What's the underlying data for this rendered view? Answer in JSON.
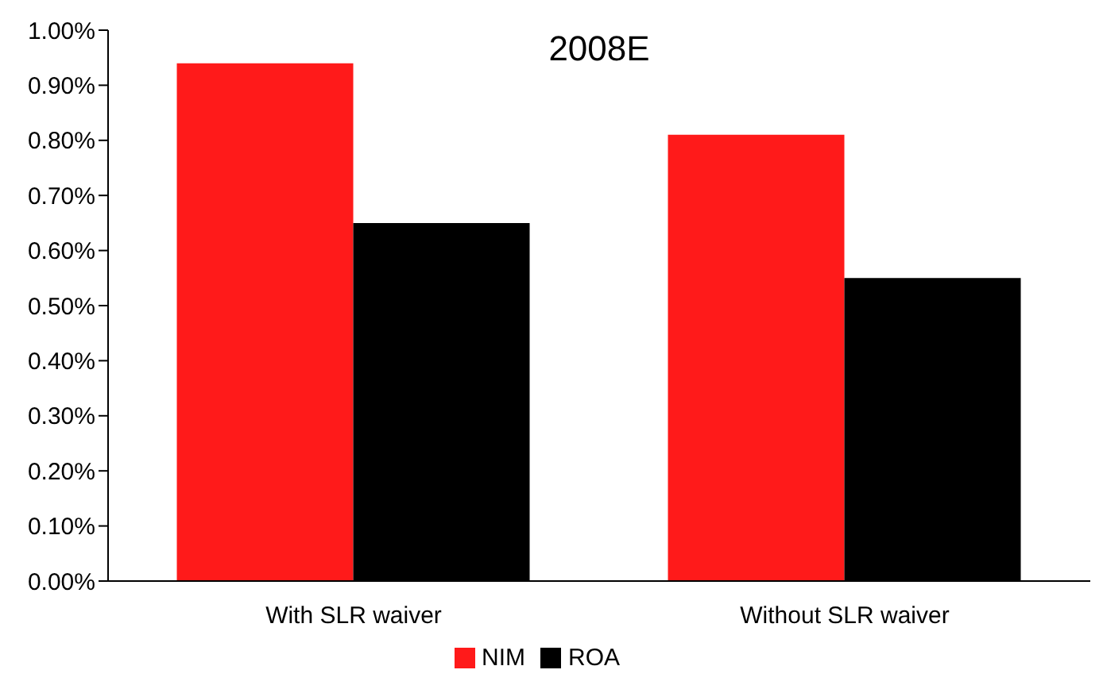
{
  "chart_data": {
    "type": "bar",
    "title": "2008E",
    "categories": [
      "With SLR waiver",
      "Without SLR waiver"
    ],
    "series": [
      {
        "name": "NIM",
        "color": "#ff1a1a",
        "values": [
          0.94,
          0.81
        ]
      },
      {
        "name": "ROA",
        "color": "#000000",
        "values": [
          0.65,
          0.55
        ]
      }
    ],
    "ylim": [
      0,
      1
    ],
    "yticks": [
      {
        "value": 0,
        "label": "0.00%"
      },
      {
        "value": 0.1,
        "label": "0.10%"
      },
      {
        "value": 0.2,
        "label": "0.20%"
      },
      {
        "value": 0.3,
        "label": "0.30%"
      },
      {
        "value": 0.4,
        "label": "0.40%"
      },
      {
        "value": 0.5,
        "label": "0.50%"
      },
      {
        "value": 0.6,
        "label": "0.60%"
      },
      {
        "value": 0.7,
        "label": "0.70%"
      },
      {
        "value": 0.8,
        "label": "0.80%"
      },
      {
        "value": 0.9,
        "label": "0.90%"
      },
      {
        "value": 1,
        "label": "1.00%"
      }
    ],
    "grid": false,
    "legend": "bottom"
  }
}
